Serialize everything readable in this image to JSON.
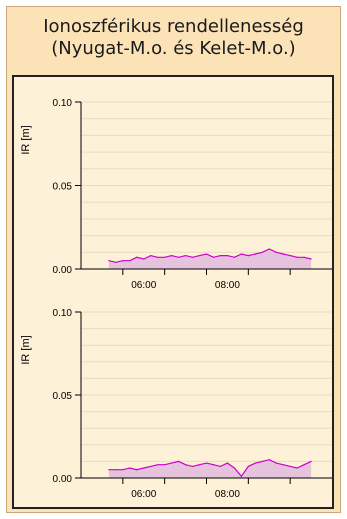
{
  "panel": {
    "title_line1": "Ionoszférikus rendellenesség",
    "title_line2": "(Nyugat-M.o. és Kelet-M.o.)"
  },
  "colors": {
    "panel_bg": "#fbe3b7",
    "plot_bg": "#fdf1d8",
    "line": "#cc00cc",
    "fill": "#e6c3dc",
    "grid": "#e9dcc3"
  },
  "chart_data": [
    {
      "type": "area",
      "ylabel": "IR [m]",
      "ylim": [
        0,
        0.1
      ],
      "yticks": [
        "0.10",
        "0.05",
        "0.00"
      ],
      "xlim": [
        "04:00",
        "10:00"
      ],
      "xticks": [
        "06:00",
        "08:00"
      ],
      "grid": "horizontal",
      "series": [
        {
          "x": [
            "04:40",
            "04:50",
            "05:00",
            "05:10",
            "05:20",
            "05:30",
            "05:40",
            "05:50",
            "06:00",
            "06:10",
            "06:20",
            "06:30",
            "06:40",
            "06:50",
            "07:00",
            "07:10",
            "07:20",
            "07:30",
            "07:40",
            "07:50",
            "08:00",
            "08:10",
            "08:20",
            "08:30",
            "08:40",
            "08:50",
            "09:00",
            "09:10",
            "09:20",
            "09:30"
          ],
          "values": [
            0.005,
            0.004,
            0.005,
            0.005,
            0.007,
            0.006,
            0.008,
            0.007,
            0.007,
            0.008,
            0.007,
            0.008,
            0.007,
            0.008,
            0.009,
            0.007,
            0.008,
            0.008,
            0.007,
            0.009,
            0.008,
            0.009,
            0.01,
            0.012,
            0.01,
            0.009,
            0.008,
            0.007,
            0.007,
            0.006
          ]
        }
      ]
    },
    {
      "type": "area",
      "ylabel": "IR [m]",
      "ylim": [
        0,
        0.1
      ],
      "yticks": [
        "0.10",
        "0.05",
        "0.00"
      ],
      "xlim": [
        "04:00",
        "10:00"
      ],
      "xticks": [
        "06:00",
        "08:00"
      ],
      "grid": "horizontal",
      "series": [
        {
          "x": [
            "04:40",
            "04:50",
            "05:00",
            "05:10",
            "05:20",
            "05:30",
            "05:40",
            "05:50",
            "06:00",
            "06:10",
            "06:20",
            "06:30",
            "06:40",
            "06:50",
            "07:00",
            "07:10",
            "07:20",
            "07:30",
            "07:40",
            "07:50",
            "08:00",
            "08:10",
            "08:20",
            "08:30",
            "08:40",
            "08:50",
            "09:00",
            "09:10",
            "09:20",
            "09:30"
          ],
          "values": [
            0.005,
            0.005,
            0.005,
            0.006,
            0.005,
            0.006,
            0.007,
            0.008,
            0.008,
            0.009,
            0.01,
            0.008,
            0.007,
            0.008,
            0.009,
            0.008,
            0.007,
            0.009,
            0.006,
            0.001,
            0.007,
            0.009,
            0.01,
            0.011,
            0.009,
            0.008,
            0.007,
            0.006,
            0.008,
            0.01
          ]
        }
      ]
    }
  ]
}
